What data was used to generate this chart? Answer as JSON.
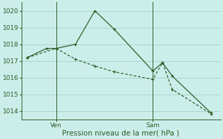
{
  "bg_color": "#cceeea",
  "line_color": "#2d5a27",
  "grid_color": "#aad4cc",
  "ylabel": "Pression niveau de la mer( hPa )",
  "ylim": [
    1013.5,
    1020.5
  ],
  "yticks": [
    1014,
    1015,
    1016,
    1017,
    1018,
    1019,
    1020
  ],
  "xtick_labels": [
    "Ven",
    "Sam"
  ],
  "xtick_pos": [
    1.5,
    6.5
  ],
  "vline_pos": [
    1.5,
    6.5
  ],
  "line1_x": [
    0,
    1,
    1.5,
    2.5,
    3.5,
    4.5,
    6.5,
    7.0,
    7.5,
    9.5
  ],
  "line1_y": [
    1017.2,
    1017.75,
    1017.75,
    1018.0,
    1020.0,
    1018.9,
    1016.4,
    1016.9,
    1016.1,
    1013.9
  ],
  "line2_x": [
    0,
    1.5,
    2.5,
    3.5,
    4.5,
    6.5,
    7.0,
    7.5,
    9.5
  ],
  "line2_y": [
    1017.2,
    1017.75,
    1017.1,
    1016.7,
    1016.35,
    1015.9,
    1016.9,
    1015.3,
    1013.85
  ],
  "tick_fontsize": 6.5,
  "xlabel_fontsize": 7.5
}
